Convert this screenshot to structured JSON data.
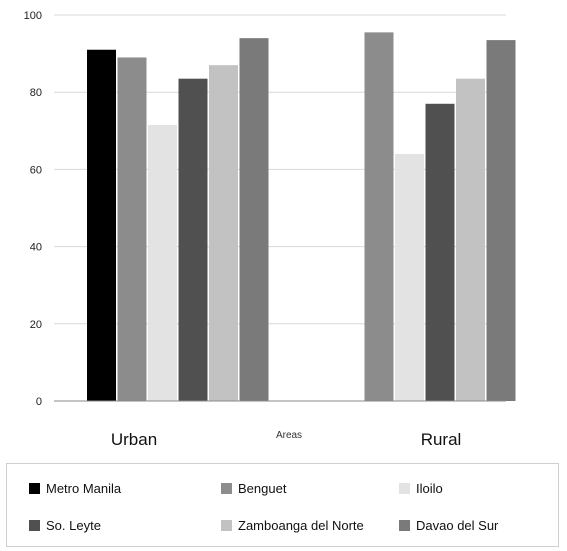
{
  "chart_data": {
    "type": "bar",
    "title": "",
    "xlabel": "Areas",
    "ylabel": "",
    "ylim": [
      0,
      100
    ],
    "yticks": [
      0,
      20,
      40,
      60,
      80,
      100
    ],
    "grid": true,
    "legend_position": "bottom",
    "categories": [
      "Urban",
      "Rural"
    ],
    "series": [
      {
        "name": "Metro Manila",
        "color": "#000000",
        "values": [
          91,
          null
        ]
      },
      {
        "name": "Benguet",
        "color": "#8c8c8c",
        "values": [
          89,
          95.5
        ]
      },
      {
        "name": "Iloilo",
        "color": "#e3e3e3",
        "values": [
          71.5,
          64
        ]
      },
      {
        "name": "So. Leyte",
        "color": "#505050",
        "values": [
          83.5,
          77
        ]
      },
      {
        "name": "Zamboanga del Norte",
        "color": "#c2c2c2",
        "values": [
          87,
          83.5
        ]
      },
      {
        "name": "Davao del Sur",
        "color": "#7a7a7a",
        "values": [
          94,
          93.5
        ]
      }
    ]
  }
}
